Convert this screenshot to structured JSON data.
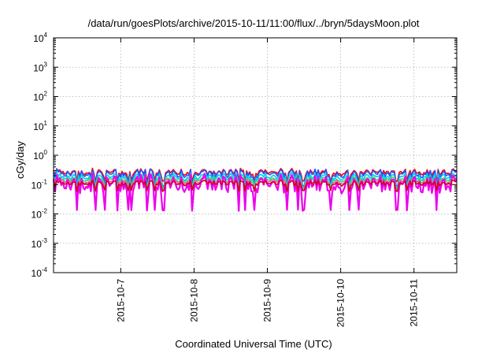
{
  "chart_data": {
    "type": "line",
    "title": "/data/run/goesPlots/archive/2015-10-11/11:00/flux/../bryn/5daysMoon.plot",
    "xlabel": "Coordinated Universal Time (UTC)",
    "ylabel": "cGy/day",
    "yscale": "log",
    "ylim": [
      0.0001,
      10000
    ],
    "y_ticks": [
      {
        "base": "10",
        "exp": "-4",
        "value": 0.0001
      },
      {
        "base": "10",
        "exp": "-3",
        "value": 0.001
      },
      {
        "base": "10",
        "exp": "-2",
        "value": 0.01
      },
      {
        "base": "10",
        "exp": "-1",
        "value": 0.1
      },
      {
        "base": "10",
        "exp": "0",
        "value": 1
      },
      {
        "base": "10",
        "exp": "1",
        "value": 10
      },
      {
        "base": "10",
        "exp": "2",
        "value": 100
      },
      {
        "base": "10",
        "exp": "3",
        "value": 1000
      },
      {
        "base": "10",
        "exp": "4",
        "value": 10000
      }
    ],
    "xlim": [
      "2015-10-06T02:00",
      "2015-10-11T14:00"
    ],
    "x_ticks": [
      "2015-10-7",
      "2015-10-8",
      "2015-10-9",
      "2015-10-10",
      "2015-10-11"
    ],
    "x_tick_values": [
      "2015-10-07T00:00",
      "2015-10-08T00:00",
      "2015-10-09T00:00",
      "2015-10-10T00:00",
      "2015-10-11T00:00"
    ],
    "grid": true,
    "legend": "none",
    "series": [
      {
        "color": "#ff0000",
        "level": 0.26,
        "spread": 0.12
      },
      {
        "color": "#2255ff",
        "level": 0.23,
        "spread": 0.16
      },
      {
        "color": "#00ccee",
        "level": 0.18,
        "spread": 0.14
      },
      {
        "color": "#33dd66",
        "level": 0.15,
        "spread": 0.13
      },
      {
        "color": "#ff55aa",
        "level": 0.13,
        "spread": 0.13
      },
      {
        "color": "#ee00ee",
        "level": 0.1,
        "spread": 0.35
      },
      {
        "color": "#cc0022",
        "level": 0.11,
        "spread": 0.1
      }
    ]
  }
}
